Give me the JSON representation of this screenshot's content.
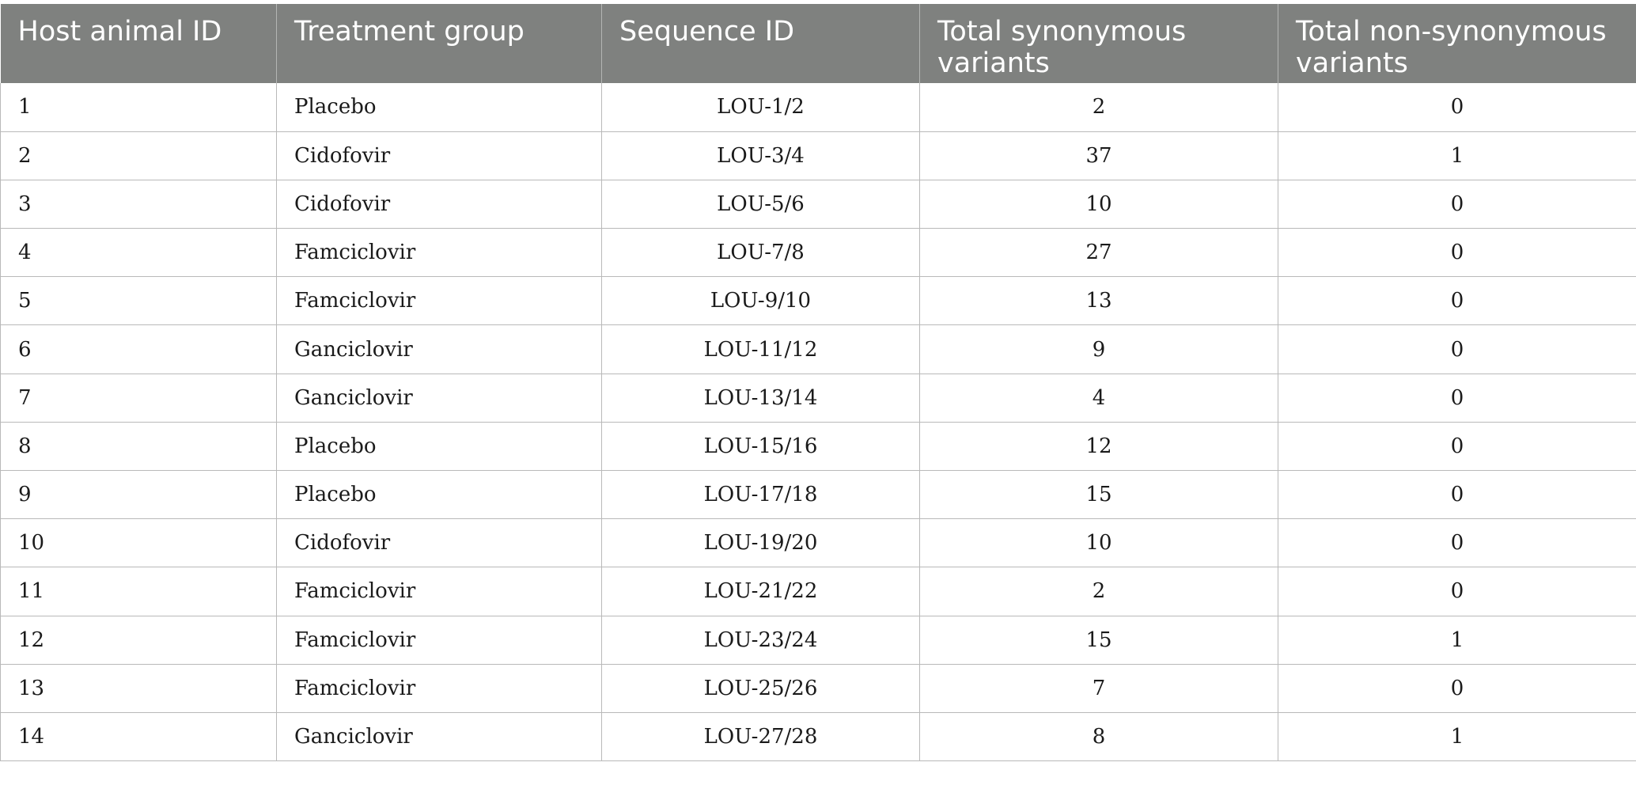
{
  "table": {
    "headers": [
      "Host animal ID",
      "Treatment group",
      "Sequence ID",
      "Total synonymous variants",
      "Total non-synonymous variants"
    ],
    "rows": [
      [
        "1",
        "Placebo",
        "LOU-1/2",
        "2",
        "0"
      ],
      [
        "2",
        "Cidofovir",
        "LOU-3/4",
        "37",
        "1"
      ],
      [
        "3",
        "Cidofovir",
        "LOU-5/6",
        "10",
        "0"
      ],
      [
        "4",
        "Famciclovir",
        "LOU-7/8",
        "27",
        "0"
      ],
      [
        "5",
        "Famciclovir",
        "LOU-9/10",
        "13",
        "0"
      ],
      [
        "6",
        "Ganciclovir",
        "LOU-11/12",
        "9",
        "0"
      ],
      [
        "7",
        "Ganciclovir",
        "LOU-13/14",
        "4",
        "0"
      ],
      [
        "8",
        "Placebo",
        "LOU-15/16",
        "12",
        "0"
      ],
      [
        "9",
        "Placebo",
        "LOU-17/18",
        "15",
        "0"
      ],
      [
        "10",
        "Cidofovir",
        "LOU-19/20",
        "10",
        "0"
      ],
      [
        "11",
        "Famciclovir",
        "LOU-21/22",
        "2",
        "0"
      ],
      [
        "12",
        "Famciclovir",
        "LOU-23/24",
        "15",
        "1"
      ],
      [
        "13",
        "Famciclovir",
        "LOU-25/26",
        "7",
        "0"
      ],
      [
        "14",
        "Ganciclovir",
        "LOU-27/28",
        "8",
        "1"
      ]
    ]
  },
  "colors": {
    "header_background": "#7f817f",
    "header_text": "#ffffff",
    "grid_line": "#b9b9b9",
    "body_text": "#1a1a1a"
  }
}
